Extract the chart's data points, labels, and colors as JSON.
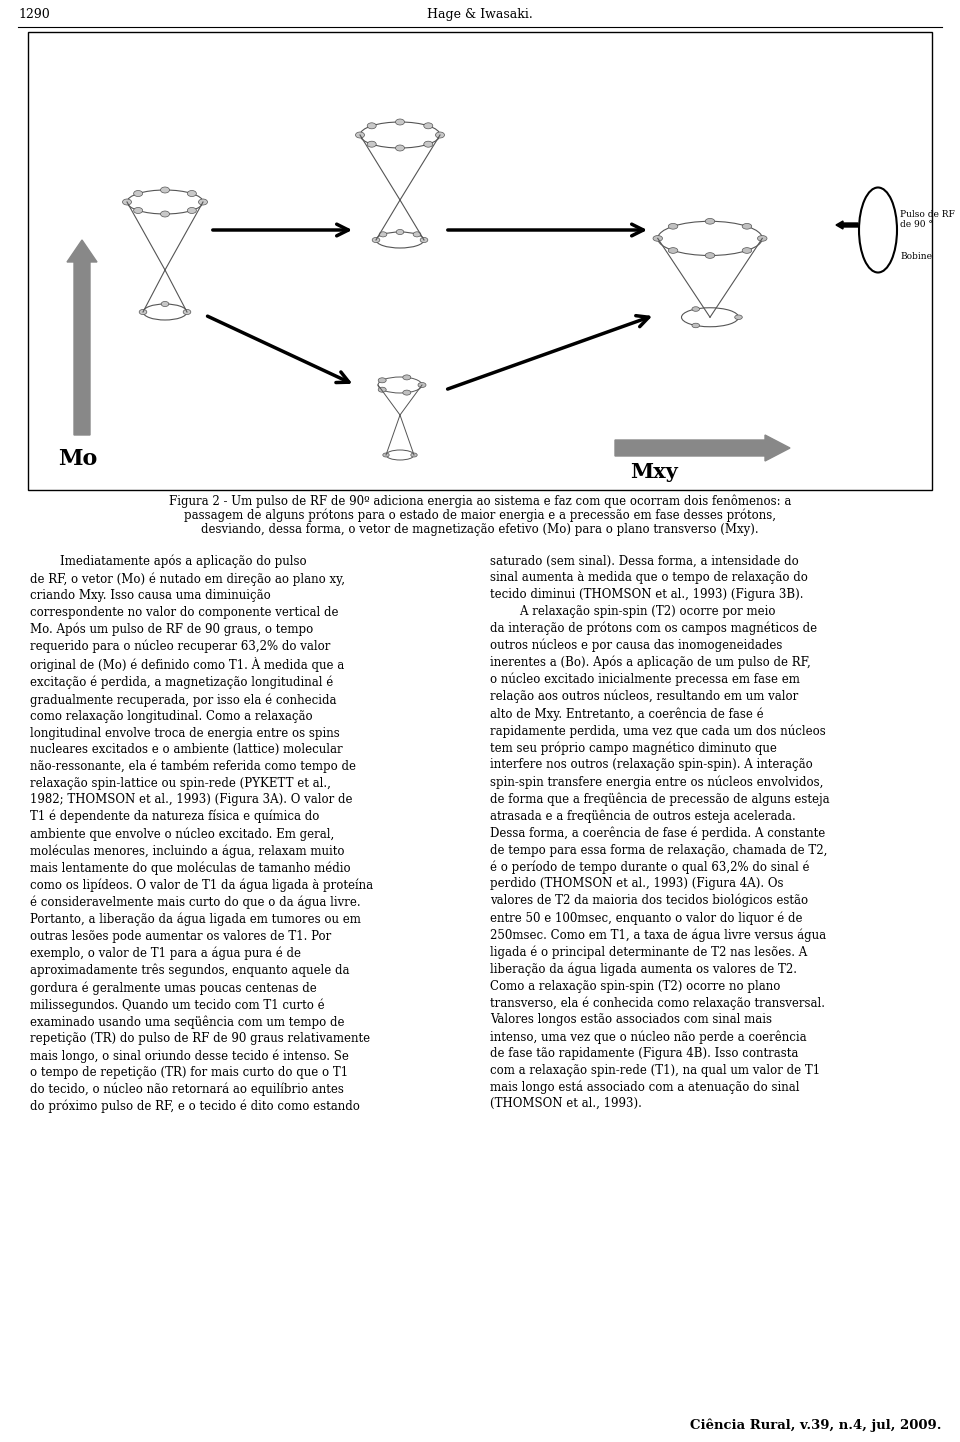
{
  "page_width": 9.6,
  "page_height": 14.42,
  "dpi": 100,
  "background_color": "#ffffff",
  "header_text": "Hage & Iwasaki.",
  "header_page_num": "1290",
  "figure_caption_line1": "Figura 2 - Um pulso de RF de 90º adiciona energia ao sistema e faz com que ocorram dois fenômenos: a",
  "figure_caption_line2": "passagem de alguns prótons para o estado de maior energia e a precessão em fase desses prótons,",
  "figure_caption_line3": "desviando, dessa forma, o vetor de magnetização efetivo (Mo) para o plano transverso (Mxy).",
  "footer_text": "Ciência Rural, v.39, n.4, jul, 2009."
}
